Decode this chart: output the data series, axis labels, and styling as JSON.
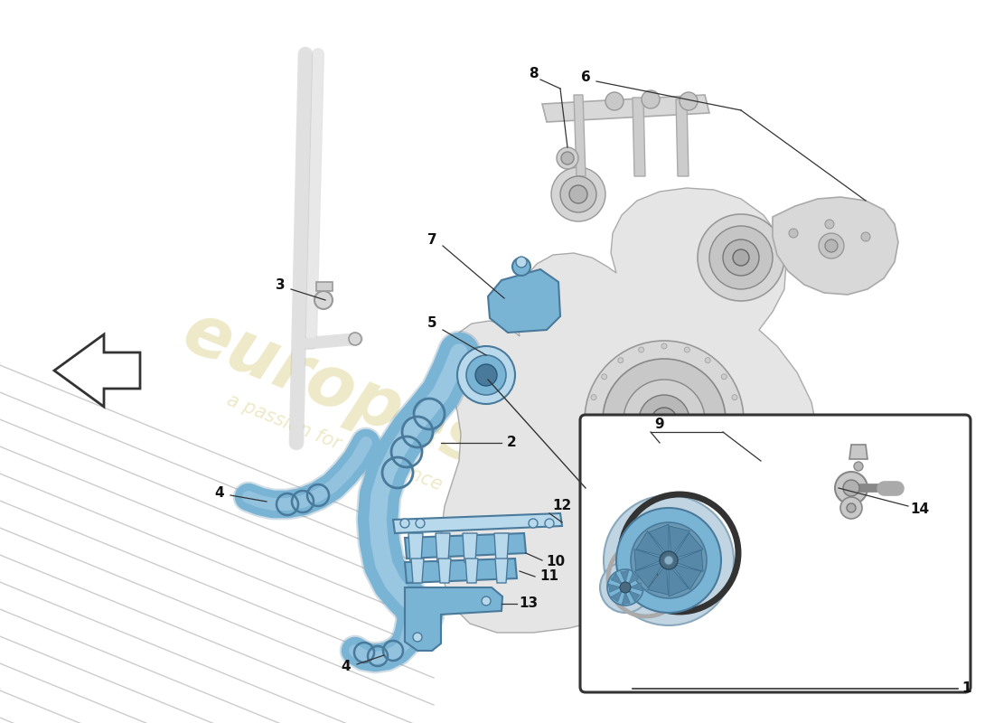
{
  "bg": "#ffffff",
  "watermark_color": "#c8b84a",
  "blue_fill": "#7ab4d4",
  "blue_dark": "#4a7a9b",
  "blue_light": "#b8d8ec",
  "gray_fill": "#d8d8d8",
  "gray_dark": "#888888",
  "gray_med": "#bbbbbb",
  "line_col": "#333333",
  "label_col": "#111111"
}
